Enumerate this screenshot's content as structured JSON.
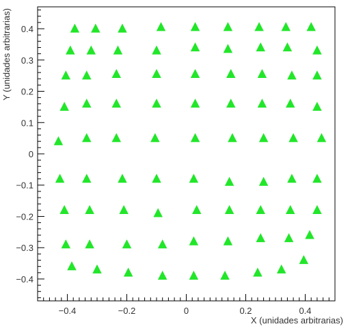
{
  "chart_data": {
    "type": "scatter",
    "title": "",
    "xlabel": "X (unidades arbitrarias)",
    "ylabel": "Y (unidades arbitrarias)",
    "xlim": [
      -0.5,
      0.5
    ],
    "ylim": [
      -0.47,
      0.47
    ],
    "xticks": [
      -0.4,
      -0.2,
      0,
      0.2,
      0.4
    ],
    "xtick_labels": [
      "−0.4",
      "−0.2",
      "0",
      "0.2",
      "0.4"
    ],
    "yticks": [
      -0.4,
      -0.3,
      -0.2,
      -0.1,
      0,
      0.1,
      0.2,
      0.3,
      0.4
    ],
    "ytick_labels": [
      "−0.4",
      "−0.3",
      "−0.2",
      "−0.1",
      "0",
      "0.1",
      "0.2",
      "0.3",
      "0.4"
    ],
    "grid": false,
    "legend": "none",
    "marker": "triangle",
    "marker_color": "#22e62a",
    "points": [
      {
        "x": -0.375,
        "y": 0.4
      },
      {
        "x": -0.305,
        "y": 0.4
      },
      {
        "x": -0.215,
        "y": 0.4
      },
      {
        "x": -0.085,
        "y": 0.405
      },
      {
        "x": 0.03,
        "y": 0.405
      },
      {
        "x": 0.14,
        "y": 0.405
      },
      {
        "x": 0.245,
        "y": 0.405
      },
      {
        "x": 0.335,
        "y": 0.405
      },
      {
        "x": 0.42,
        "y": 0.405
      },
      {
        "x": -0.39,
        "y": 0.33
      },
      {
        "x": -0.32,
        "y": 0.33
      },
      {
        "x": -0.23,
        "y": 0.33
      },
      {
        "x": -0.1,
        "y": 0.33
      },
      {
        "x": 0.03,
        "y": 0.34
      },
      {
        "x": 0.14,
        "y": 0.335
      },
      {
        "x": 0.25,
        "y": 0.34
      },
      {
        "x": 0.34,
        "y": 0.34
      },
      {
        "x": 0.44,
        "y": 0.33
      },
      {
        "x": -0.405,
        "y": 0.25
      },
      {
        "x": -0.335,
        "y": 0.25
      },
      {
        "x": -0.235,
        "y": 0.255
      },
      {
        "x": -0.1,
        "y": 0.255
      },
      {
        "x": 0.03,
        "y": 0.255
      },
      {
        "x": 0.15,
        "y": 0.255
      },
      {
        "x": 0.255,
        "y": 0.255
      },
      {
        "x": 0.355,
        "y": 0.25
      },
      {
        "x": 0.44,
        "y": 0.25
      },
      {
        "x": -0.41,
        "y": 0.15
      },
      {
        "x": -0.335,
        "y": 0.16
      },
      {
        "x": -0.235,
        "y": 0.16
      },
      {
        "x": -0.1,
        "y": 0.16
      },
      {
        "x": 0.03,
        "y": 0.16
      },
      {
        "x": 0.15,
        "y": 0.16
      },
      {
        "x": 0.255,
        "y": 0.16
      },
      {
        "x": 0.35,
        "y": 0.16
      },
      {
        "x": 0.44,
        "y": 0.15
      },
      {
        "x": -0.43,
        "y": 0.04
      },
      {
        "x": -0.335,
        "y": 0.05
      },
      {
        "x": -0.235,
        "y": 0.05
      },
      {
        "x": -0.105,
        "y": 0.05
      },
      {
        "x": 0.03,
        "y": 0.05
      },
      {
        "x": 0.155,
        "y": 0.05
      },
      {
        "x": 0.26,
        "y": 0.05
      },
      {
        "x": 0.36,
        "y": 0.05
      },
      {
        "x": 0.455,
        "y": 0.05
      },
      {
        "x": -0.425,
        "y": -0.08
      },
      {
        "x": -0.335,
        "y": -0.08
      },
      {
        "x": -0.215,
        "y": -0.08
      },
      {
        "x": -0.1,
        "y": -0.08
      },
      {
        "x": 0.025,
        "y": -0.08
      },
      {
        "x": 0.145,
        "y": -0.09
      },
      {
        "x": 0.26,
        "y": -0.09
      },
      {
        "x": 0.355,
        "y": -0.08
      },
      {
        "x": 0.44,
        "y": -0.08
      },
      {
        "x": -0.41,
        "y": -0.18
      },
      {
        "x": -0.325,
        "y": -0.18
      },
      {
        "x": -0.21,
        "y": -0.18
      },
      {
        "x": -0.095,
        "y": -0.19
      },
      {
        "x": 0.035,
        "y": -0.18
      },
      {
        "x": 0.145,
        "y": -0.18
      },
      {
        "x": 0.25,
        "y": -0.18
      },
      {
        "x": 0.35,
        "y": -0.18
      },
      {
        "x": 0.44,
        "y": -0.18
      },
      {
        "x": -0.405,
        "y": -0.29
      },
      {
        "x": -0.325,
        "y": -0.29
      },
      {
        "x": -0.2,
        "y": -0.29
      },
      {
        "x": -0.08,
        "y": -0.29
      },
      {
        "x": 0.025,
        "y": -0.28
      },
      {
        "x": 0.14,
        "y": -0.28
      },
      {
        "x": 0.25,
        "y": -0.27
      },
      {
        "x": 0.345,
        "y": -0.27
      },
      {
        "x": 0.415,
        "y": -0.26
      },
      {
        "x": -0.385,
        "y": -0.36
      },
      {
        "x": -0.3,
        "y": -0.37
      },
      {
        "x": -0.195,
        "y": -0.38
      },
      {
        "x": -0.08,
        "y": -0.39
      },
      {
        "x": 0.025,
        "y": -0.39
      },
      {
        "x": 0.13,
        "y": -0.39
      },
      {
        "x": 0.24,
        "y": -0.38
      },
      {
        "x": 0.32,
        "y": -0.37
      },
      {
        "x": 0.395,
        "y": -0.34
      }
    ]
  }
}
